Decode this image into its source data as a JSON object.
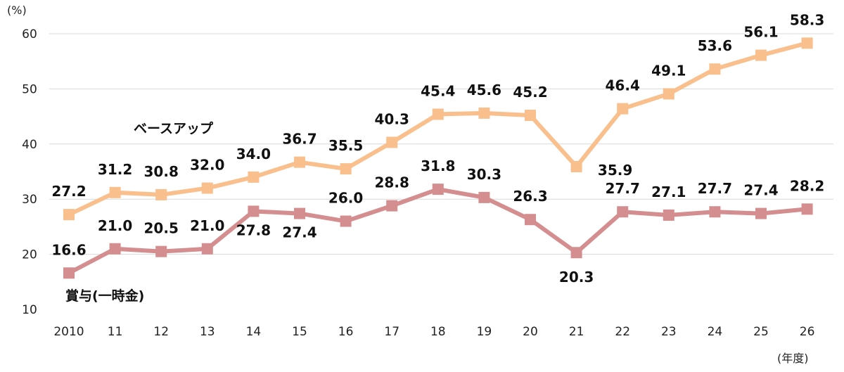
{
  "chart_data": {
    "type": "line",
    "title": "",
    "ylabel": "(%)",
    "xlabel": "(年度)",
    "ylim": [
      10,
      60
    ],
    "yticks": [
      10,
      20,
      30,
      40,
      50,
      60
    ],
    "grid": true,
    "categories": [
      "2010",
      "11",
      "12",
      "13",
      "14",
      "15",
      "16",
      "17",
      "18",
      "19",
      "20",
      "21",
      "22",
      "23",
      "24",
      "25",
      "26"
    ],
    "series": [
      {
        "name": "ベースアップ",
        "color": "#f9bf8c",
        "values": [
          27.2,
          31.2,
          30.8,
          32.0,
          34.0,
          36.7,
          35.5,
          40.3,
          45.4,
          45.6,
          45.2,
          35.9,
          46.4,
          49.1,
          53.6,
          56.1,
          58.3
        ],
        "labels": [
          "27.2",
          "31.2",
          "30.8",
          "32.0",
          "34.0",
          "36.7",
          "35.5",
          "40.3",
          "45.4",
          "45.6",
          "45.2",
          "35.9",
          "46.4",
          "49.1",
          "53.6",
          "56.1",
          "58.3"
        ]
      },
      {
        "name": "賞与(一時金)",
        "color": "#d48e8f",
        "values": [
          16.6,
          21.0,
          20.5,
          21.0,
          27.8,
          27.4,
          26.0,
          28.8,
          31.8,
          30.3,
          26.3,
          20.3,
          27.7,
          27.1,
          27.7,
          27.4,
          28.2
        ],
        "labels": [
          "16.6",
          "21.0",
          "20.5",
          "21.0",
          "27.8",
          "27.4",
          "26.0",
          "28.8",
          "31.8",
          "30.3",
          "26.3",
          "20.3",
          "27.7",
          "27.1",
          "27.7",
          "27.4",
          "28.2"
        ]
      }
    ]
  }
}
